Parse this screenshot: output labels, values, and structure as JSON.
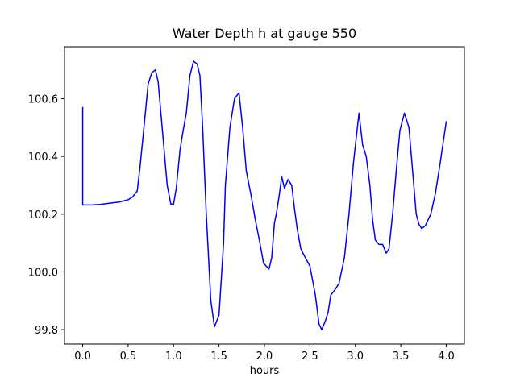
{
  "chart_data": {
    "type": "line",
    "title": "Water Depth h at gauge 550",
    "xlabel": "hours",
    "ylabel": "",
    "xlim": [
      -0.2,
      4.2
    ],
    "ylim": [
      99.75,
      100.78
    ],
    "xticks": [
      0.0,
      0.5,
      1.0,
      1.5,
      2.0,
      2.5,
      3.0,
      3.5,
      4.0
    ],
    "xtick_labels": [
      "0.0",
      "0.5",
      "1.0",
      "1.5",
      "2.0",
      "2.5",
      "3.0",
      "3.5",
      "4.0"
    ],
    "yticks": [
      99.8,
      100.0,
      100.2,
      100.4,
      100.6
    ],
    "ytick_labels": [
      "99.8",
      "100.0",
      "100.2",
      "100.4",
      "100.6"
    ],
    "grid": false,
    "series": [
      {
        "color": "#0000ff",
        "x": [
          0.0,
          0.0,
          0.1,
          0.2,
          0.3,
          0.4,
          0.5,
          0.55,
          0.6,
          0.63,
          0.68,
          0.72,
          0.76,
          0.8,
          0.83,
          0.88,
          0.93,
          0.97,
          1.0,
          1.03,
          1.07,
          1.1,
          1.14,
          1.18,
          1.22,
          1.26,
          1.29,
          1.32,
          1.36,
          1.41,
          1.45,
          1.5,
          1.55,
          1.57,
          1.62,
          1.67,
          1.72,
          1.76,
          1.8,
          1.85,
          1.9,
          1.95,
          1.99,
          2.02,
          2.05,
          2.08,
          2.11,
          2.13,
          2.16,
          2.19,
          2.22,
          2.26,
          2.3,
          2.33,
          2.36,
          2.4,
          2.44,
          2.5,
          2.56,
          2.6,
          2.63,
          2.67,
          2.7,
          2.73,
          2.78,
          2.82,
          2.88,
          2.93,
          2.98,
          3.04,
          3.08,
          3.12,
          3.16,
          3.19,
          3.22,
          3.26,
          3.3,
          3.34,
          3.37,
          3.41,
          3.45,
          3.49,
          3.54,
          3.59,
          3.63,
          3.67,
          3.7,
          3.73,
          3.77,
          3.83,
          3.88,
          3.93,
          4.0
        ],
        "values": [
          100.57,
          100.232,
          100.232,
          100.234,
          100.238,
          100.242,
          100.25,
          100.26,
          100.28,
          100.36,
          100.52,
          100.65,
          100.69,
          100.7,
          100.66,
          100.48,
          100.3,
          100.235,
          100.235,
          100.29,
          100.42,
          100.48,
          100.55,
          100.68,
          100.73,
          100.72,
          100.68,
          100.5,
          100.2,
          99.9,
          99.81,
          99.85,
          100.1,
          100.3,
          100.5,
          100.6,
          100.62,
          100.5,
          100.35,
          100.27,
          100.18,
          100.1,
          100.03,
          100.02,
          100.01,
          100.05,
          100.17,
          100.2,
          100.26,
          100.33,
          100.29,
          100.32,
          100.3,
          100.22,
          100.15,
          100.08,
          100.055,
          100.02,
          99.92,
          99.82,
          99.8,
          99.83,
          99.86,
          99.92,
          99.94,
          99.96,
          100.05,
          100.2,
          100.38,
          100.55,
          100.44,
          100.4,
          100.3,
          100.18,
          100.11,
          100.095,
          100.095,
          100.065,
          100.08,
          100.2,
          100.35,
          100.49,
          100.55,
          100.5,
          100.35,
          100.2,
          100.165,
          100.15,
          100.16,
          100.2,
          100.27,
          100.37,
          100.52
        ]
      }
    ]
  }
}
